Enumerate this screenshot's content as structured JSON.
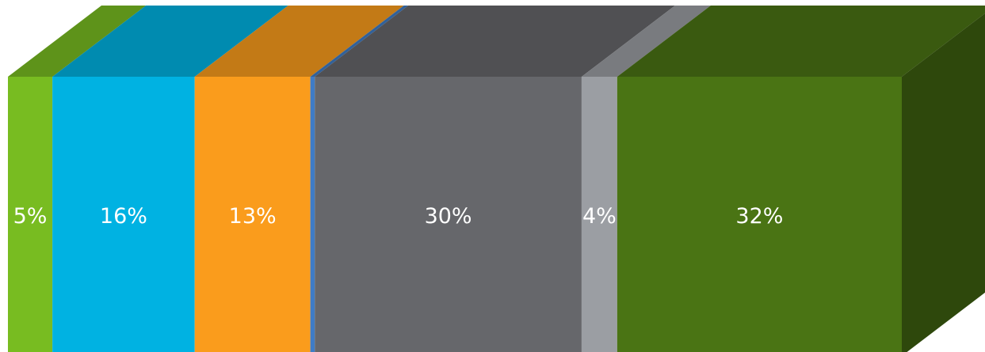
{
  "chart_data": {
    "type": "bar",
    "subtype": "100% stacked horizontal bar, 3D",
    "title": "",
    "xlabel": "",
    "ylabel": "",
    "legend": "none",
    "grid": false,
    "series": [
      {
        "value": 5,
        "label": "5%",
        "color": "#78bc21"
      },
      {
        "value": 16,
        "label": "16%",
        "color": "#00b2e2"
      },
      {
        "value": 13,
        "label": "13%",
        "color": "#fa9c1c"
      },
      {
        "value": 0.5,
        "label": "",
        "color": "#3f7cc6"
      },
      {
        "value": 30,
        "label": "30%",
        "color": "#66676b"
      },
      {
        "value": 4,
        "label": "4%",
        "color": "#9b9ea3"
      },
      {
        "value": 32,
        "label": "32%",
        "color": "#4a7414"
      }
    ]
  }
}
